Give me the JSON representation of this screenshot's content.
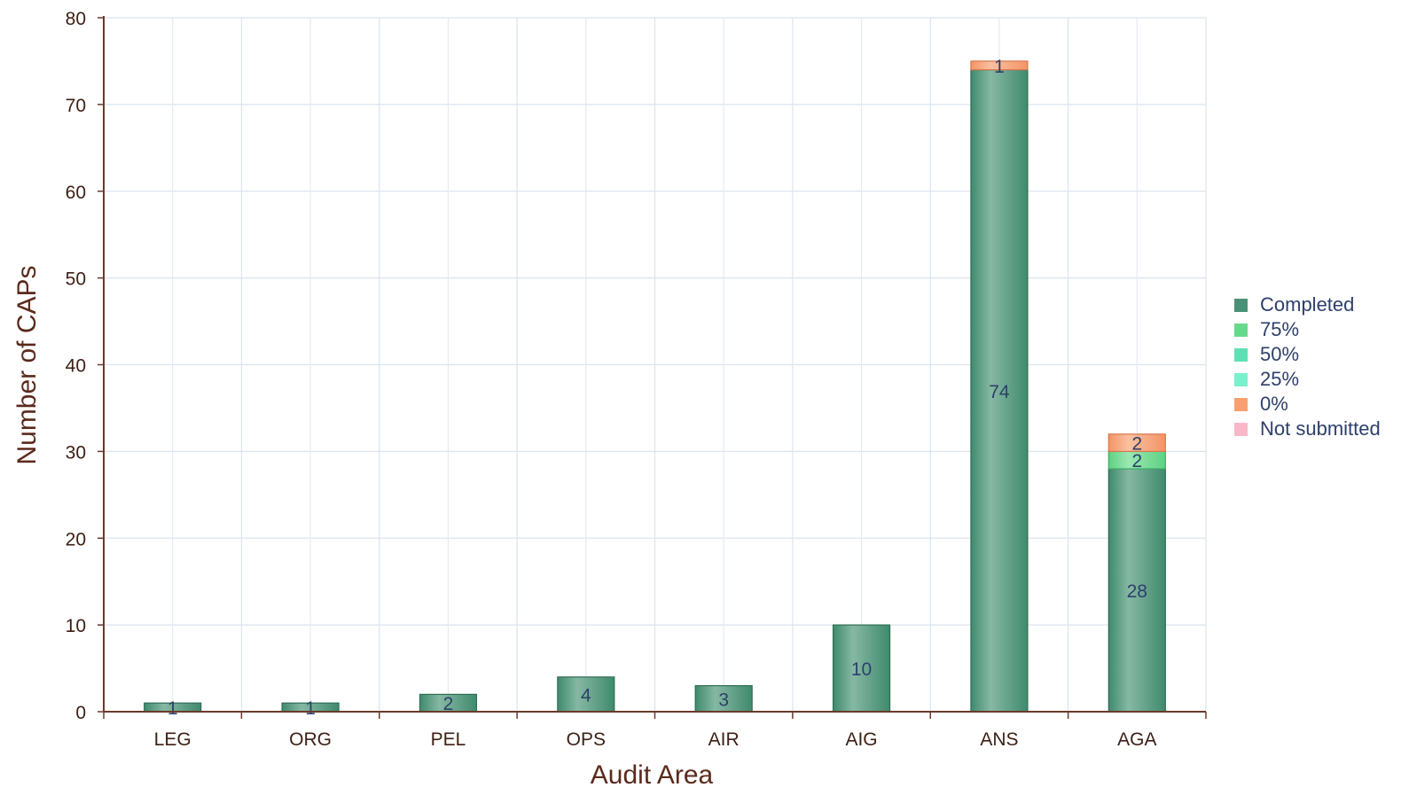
{
  "chart_data": {
    "type": "bar",
    "stacked": true,
    "categories": [
      "LEG",
      "ORG",
      "PEL",
      "OPS",
      "AIR",
      "AIG",
      "ANS",
      "AGA"
    ],
    "xlabel": "Audit Area",
    "ylabel": "Number of CAPs",
    "ylim": [
      0,
      80
    ],
    "yticks": [
      0,
      10,
      20,
      30,
      40,
      50,
      60,
      70,
      80
    ],
    "grid": true,
    "legend_position": "right",
    "series": [
      {
        "name": "Completed",
        "color": "#4a9277",
        "values": [
          1,
          1,
          2,
          4,
          3,
          10,
          74,
          28
        ]
      },
      {
        "name": "75%",
        "color": "#66d98c",
        "values": [
          0,
          0,
          0,
          0,
          0,
          0,
          0,
          2
        ]
      },
      {
        "name": "50%",
        "color": "#5fe0b4",
        "values": [
          0,
          0,
          0,
          0,
          0,
          0,
          0,
          0
        ]
      },
      {
        "name": "25%",
        "color": "#7af0cc",
        "values": [
          0,
          0,
          0,
          0,
          0,
          0,
          0,
          0
        ]
      },
      {
        "name": "0%",
        "color": "#f8a070",
        "values": [
          0,
          0,
          0,
          0,
          0,
          0,
          1,
          2
        ]
      },
      {
        "name": "Not submitted",
        "color": "#f9b8c8",
        "values": [
          0,
          0,
          0,
          0,
          0,
          0,
          0,
          0
        ]
      }
    ]
  }
}
